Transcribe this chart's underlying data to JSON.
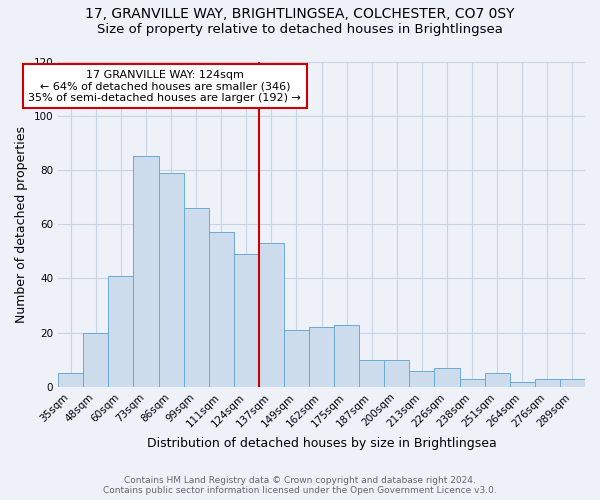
{
  "title": "17, GRANVILLE WAY, BRIGHTLINGSEA, COLCHESTER, CO7 0SY",
  "subtitle": "Size of property relative to detached houses in Brightlingsea",
  "xlabel": "Distribution of detached houses by size in Brightlingsea",
  "ylabel": "Number of detached properties",
  "footer_line1": "Contains HM Land Registry data © Crown copyright and database right 2024.",
  "footer_line2": "Contains public sector information licensed under the Open Government Licence v3.0.",
  "categories": [
    "35sqm",
    "48sqm",
    "60sqm",
    "73sqm",
    "86sqm",
    "99sqm",
    "111sqm",
    "124sqm",
    "137sqm",
    "149sqm",
    "162sqm",
    "175sqm",
    "187sqm",
    "200sqm",
    "213sqm",
    "226sqm",
    "238sqm",
    "251sqm",
    "264sqm",
    "276sqm",
    "289sqm"
  ],
  "values": [
    5,
    20,
    41,
    85,
    79,
    66,
    57,
    49,
    53,
    21,
    22,
    23,
    10,
    10,
    6,
    7,
    3,
    5,
    2,
    3,
    3
  ],
  "bar_color": "#ccdcec",
  "bar_edge_color": "#6aaad4",
  "vline_color": "#cc0000",
  "annotation_text_line1": "17 GRANVILLE WAY: 124sqm",
  "annotation_text_line2": "← 64% of detached houses are smaller (346)",
  "annotation_text_line3": "35% of semi-detached houses are larger (192) →",
  "annotation_box_color": "#cc0000",
  "annotation_bg": "#ffffff",
  "ylim": [
    0,
    120
  ],
  "yticks": [
    0,
    20,
    40,
    60,
    80,
    100,
    120
  ],
  "grid_color": "#c8d4e4",
  "bg_color": "#eef2f8",
  "title_fontsize": 10,
  "subtitle_fontsize": 9.5,
  "xlabel_fontsize": 9,
  "ylabel_fontsize": 9,
  "tick_fontsize": 7.5,
  "annotation_fontsize": 8,
  "footer_fontsize": 6.5
}
